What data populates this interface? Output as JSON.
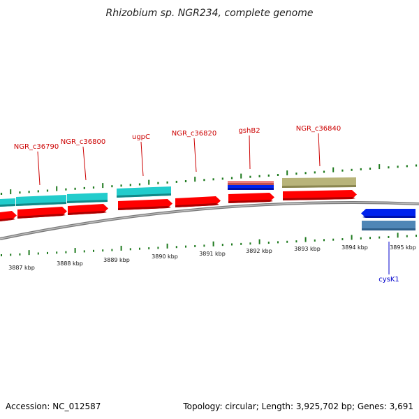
{
  "title": "Rhizobium sp. NGR234, complete genome",
  "footer": {
    "accession": "Accession: NC_012587",
    "summary": "Topology: circular; Length: 3,925,702 bp; Genes: 3,691"
  },
  "colors": {
    "tick": "#1e7a1e",
    "backbone": "#8a8a8a",
    "label_forward": "#cc0000",
    "label_reverse": "#0000cc",
    "cds_forward": "#ff0000",
    "cds_reverse": "#0022ee",
    "gene_teal": "#22cccc",
    "gene_olive": "#b8b47a",
    "gene_pink": "#ef8080",
    "gene_steel": "#4f86b6"
  },
  "scale": {
    "labels": [
      "3887 kbp",
      "3888 kbp",
      "3889 kbp",
      "3890 kbp",
      "3891 kbp",
      "3892 kbp",
      "3893 kbp",
      "3894 kbp",
      "3895 kbp"
    ]
  },
  "genes": [
    {
      "label": "NGR_c36790",
      "strand": "forward"
    },
    {
      "label": "NGR_c36800",
      "strand": "forward"
    },
    {
      "label": "ugpC",
      "strand": "forward"
    },
    {
      "label": "NGR_c36820",
      "strand": "forward"
    },
    {
      "label": "gshB2",
      "strand": "forward"
    },
    {
      "label": "NGR_c36840",
      "strand": "forward"
    },
    {
      "label": "cysK1",
      "strand": "reverse"
    }
  ]
}
